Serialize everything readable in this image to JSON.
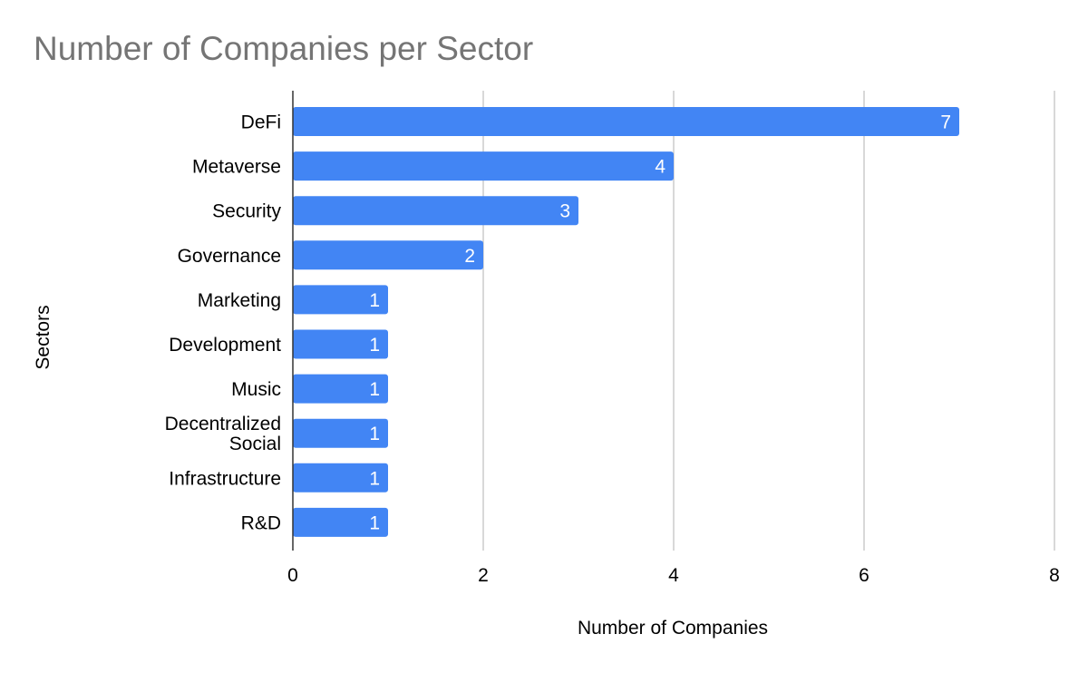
{
  "chart_data": {
    "type": "bar",
    "orientation": "horizontal",
    "title": "Number of Companies per Sector",
    "xlabel": "Number of Companies",
    "ylabel": "Sectors",
    "categories": [
      "DeFi",
      "Metaverse",
      "Security",
      "Governance",
      "Marketing",
      "Development",
      "Music",
      "Decentralized Social",
      "Infrastructure",
      "R&D"
    ],
    "category_lines": [
      [
        "DeFi"
      ],
      [
        "Metaverse"
      ],
      [
        "Security"
      ],
      [
        "Governance"
      ],
      [
        "Marketing"
      ],
      [
        "Development"
      ],
      [
        "Music"
      ],
      [
        "Decentralized",
        "Social"
      ],
      [
        "Infrastructure"
      ],
      [
        "R&D"
      ]
    ],
    "values": [
      7,
      4,
      3,
      2,
      1,
      1,
      1,
      1,
      1,
      1
    ],
    "data_labels": [
      "7",
      "4",
      "3",
      "2",
      "1",
      "1",
      "1",
      "1",
      "1",
      "1"
    ],
    "xlim": [
      0,
      8
    ],
    "xticks": [
      0,
      2,
      4,
      6,
      8
    ],
    "xtick_labels": [
      "0",
      "2",
      "4",
      "6",
      "8"
    ],
    "grid": "vertical",
    "legend": "none",
    "colors": {
      "bar": "#4285f4",
      "grid": "#cccccc",
      "axis": "#333333",
      "title": "#757575"
    }
  }
}
